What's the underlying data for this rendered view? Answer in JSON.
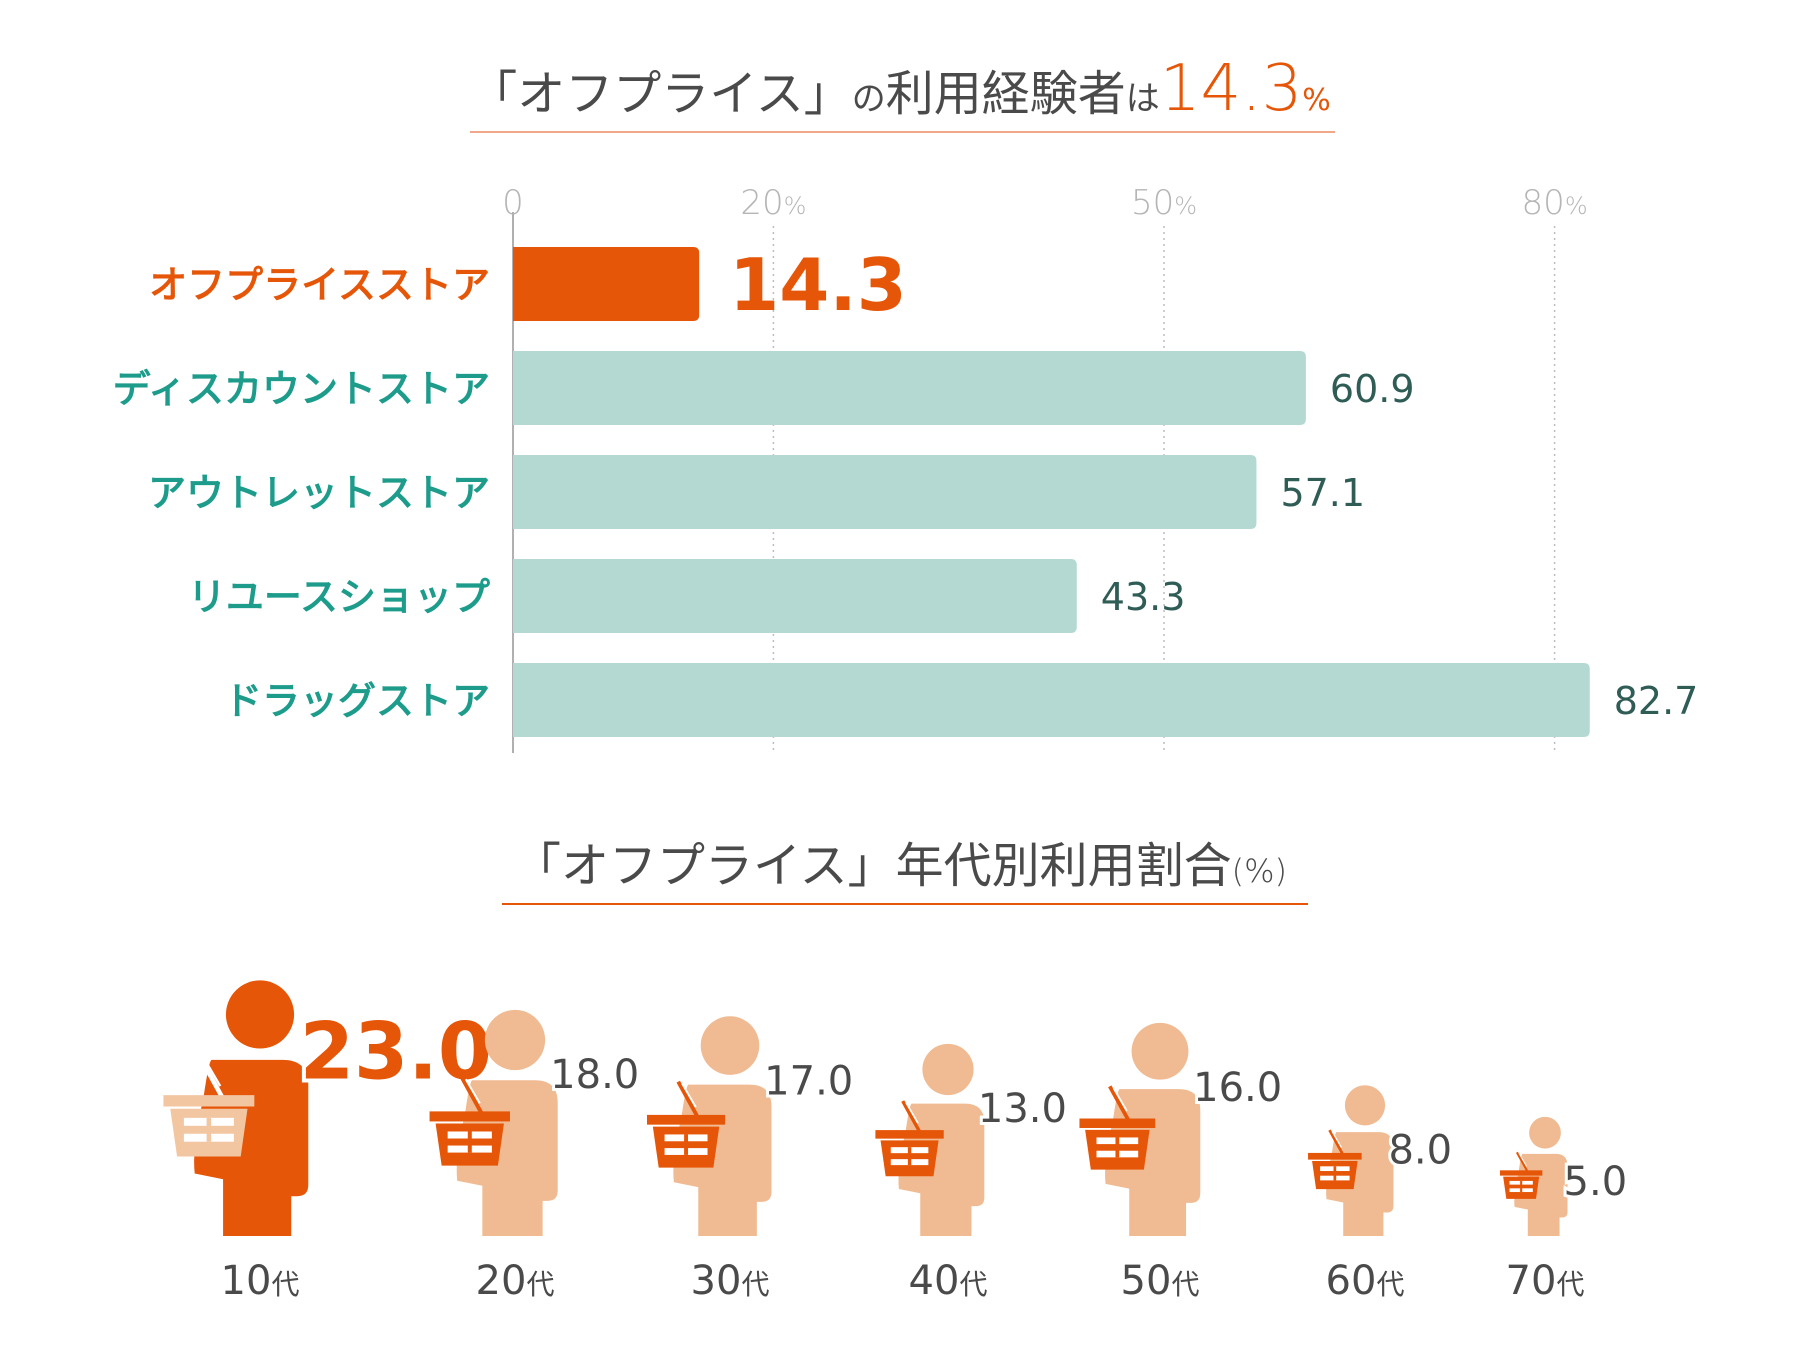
{
  "colors": {
    "accent": "#e65608",
    "teal_label": "#1d9c8c",
    "bar_other": "#b4d9d3",
    "figure_other": "#f0bb92",
    "basket_light": "#f3c6a2",
    "grid": "#bdbdbd",
    "text": "#4a4a4a",
    "value_dark": "#2f5d56",
    "tick": "#b5b5b5"
  },
  "chart_data": [
    {
      "type": "bar",
      "orientation": "horizontal",
      "title_parts": {
        "prefix": "「オフプライス」",
        "particle": "の",
        "middle": "利用経験者",
        "particle2": "は",
        "value": "14.3",
        "unit": "%"
      },
      "x_ticks": [
        {
          "value": 0,
          "label": "0",
          "unit": ""
        },
        {
          "value": 20,
          "label": "20",
          "unit": "%"
        },
        {
          "value": 50,
          "label": "50",
          "unit": "%"
        },
        {
          "value": 80,
          "label": "80",
          "unit": "%"
        }
      ],
      "xlim": [
        0,
        80
      ],
      "categories": [
        "オフプライスストア",
        "ディスカウントストア",
        "アウトレットストア",
        "リユースショップ",
        "ドラッグストア"
      ],
      "values": [
        14.3,
        60.9,
        57.1,
        43.3,
        82.7
      ],
      "value_labels": [
        "14.3",
        "60.9",
        "57.1",
        "43.3",
        "82.7"
      ],
      "highlight_index": 0
    },
    {
      "type": "pictogram",
      "title_parts": {
        "main": "「オフプライス」年代別利用割合",
        "unit": "(%)"
      },
      "categories": [
        "10",
        "20",
        "30",
        "40",
        "50",
        "60",
        "70"
      ],
      "category_suffix": "代",
      "values": [
        23.0,
        18.0,
        17.0,
        13.0,
        16.0,
        8.0,
        5.0
      ],
      "value_labels": [
        "23.0",
        "18.0",
        "17.0",
        "13.0",
        "16.0",
        "8.0",
        "5.0"
      ],
      "highlight_index": 0
    }
  ]
}
